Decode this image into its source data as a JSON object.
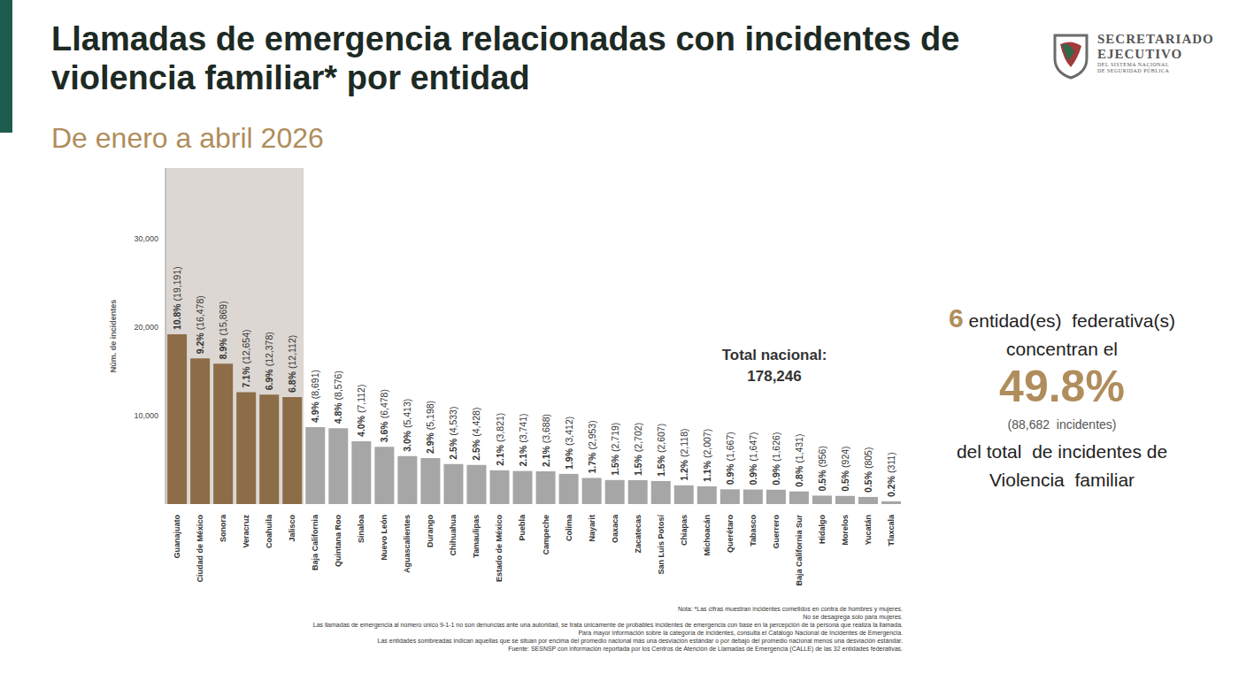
{
  "header": {
    "title": "Llamadas de emergencia relacionadas  con incidentes de violencia familiar* por entidad",
    "subtitle": "De enero a abril 2026",
    "logo": {
      "lines": [
        "SECRETARIADO",
        "EJECUTIVO"
      ],
      "sub": [
        "DEL SISTEMA NACIONAL",
        "DE SEGURIDAD PÚBLICA"
      ]
    }
  },
  "chart_data": {
    "type": "bar",
    "ylabel": "Núm. de incidentes",
    "categories": [
      "Guanajuato",
      "Ciudad de México",
      "Sonora",
      "Veracruz",
      "Coahuila",
      "Jalisco",
      "Baja California",
      "Quintana Roo",
      "Sinaloa",
      "Nuevo León",
      "Aguascalientes",
      "Durango",
      "Chihuahua",
      "Tamaulipas",
      "Estado de México",
      "Puebla",
      "Campeche",
      "Colima",
      "Nayarit",
      "Oaxaca",
      "Zacatecas",
      "San Luis Potosí",
      "Chiapas",
      "Michoacán",
      "Querétaro",
      "Tabasco",
      "Guerrero",
      "Baja California Sur",
      "Hidalgo",
      "Morelos",
      "Yucatán",
      "Tlaxcala"
    ],
    "values": [
      19191,
      16478,
      15869,
      12654,
      12378,
      12112,
      8691,
      8576,
      7112,
      6478,
      5413,
      5198,
      4533,
      4428,
      3821,
      3741,
      3688,
      3412,
      2953,
      2719,
      2702,
      2607,
      2118,
      2007,
      1667,
      1647,
      1626,
      1431,
      956,
      924,
      805,
      311
    ],
    "value_labels": [
      "10.8% (19,191)",
      "9.2% (16,478)",
      "8.9% (15,869)",
      "7.1% (12,654)",
      "6.9% (12,378)",
      "6.8% (12,112)",
      "4.9% (8,691)",
      "4.8% (8,576)",
      "4.0% (7,112)",
      "3.6% (6,478)",
      "3.0% (5,413)",
      "2.9% (5,198)",
      "2.5% (4,533)",
      "2.5% (4,428)",
      "2.1% (3,821)",
      "2.1% (3,741)",
      "2.1% (3,688)",
      "1.9% (3,412)",
      "1.7% (2,953)",
      "1.5% (2,719)",
      "1.5% (2,702)",
      "1.5% (2,607)",
      "1.2% (2,118)",
      "1.1% (2,007)",
      "0.9% (1,667)",
      "0.9% (1,647)",
      "0.9% (1,626)",
      "0.8% (1,431)",
      "0.5% (956)",
      "0.5% (924)",
      "0.5% (805)",
      "0.2% (311)"
    ],
    "colors": [
      "#8c6d47",
      "#8c6d47",
      "#8c6d47",
      "#8c6d47",
      "#8c6d47",
      "#8c6d47",
      "#a6a6a6",
      "#a6a6a6",
      "#a6a6a6",
      "#a6a6a6",
      "#a6a6a6",
      "#a6a6a6",
      "#a6a6a6",
      "#a6a6a6",
      "#a6a6a6",
      "#a6a6a6",
      "#a6a6a6",
      "#a6a6a6",
      "#a6a6a6",
      "#a6a6a6",
      "#a6a6a6",
      "#a6a6a6",
      "#a6a6a6",
      "#a6a6a6",
      "#a6a6a6",
      "#a6a6a6",
      "#a6a6a6",
      "#a6a6a6",
      "#a6a6a6",
      "#a6a6a6",
      "#a6a6a6",
      "#a6a6a6"
    ],
    "ylim": [
      0,
      38000
    ],
    "yticks": [
      {
        "value": 10000,
        "label": "10,000"
      },
      {
        "value": 20000,
        "label": "20,000"
      },
      {
        "value": 30000,
        "label": "30,000"
      }
    ],
    "grid": false,
    "data_labels": true
  },
  "annotations": {
    "total": {
      "label": "Total nacional:",
      "value": "178,246"
    },
    "summary": {
      "count": "6",
      "count_text": "entidad(es)  federativa(s)",
      "line2": "concentran el",
      "share": "49.8%",
      "incidents": "(88,682  incidentes)",
      "line5": "del total  de incidentes de",
      "line6": "Violencia  familiar"
    }
  },
  "notes": [
    "Nota: *Las cifras muestran incidentes cometidos en contra de hombres y mujeres.",
    "No se desagrega solo para mujeres.",
    "Las llamadas de emergencia al número único 9-1-1 no son denuncias ante una autoridad, se trata únicamente de probables incidentes de emergencia con base en la percepción de la persona que realiza la llamada.",
    "Para mayor información sobre la categoría de incidentes, consulta el Catálogo Nacional de Incidentes de Emergencia.",
    "Las entidades sombreadas indican aquellas que se sitúan por encima del promedio nacional más una desviación estándar o por debajo del promedio nacional menos una desviación estándar.",
    "Fuente: SESNSP con información reportada por los Centros de Atención de Llamadas de Emergencia (CALLE) de las 32 entidades federativas."
  ]
}
